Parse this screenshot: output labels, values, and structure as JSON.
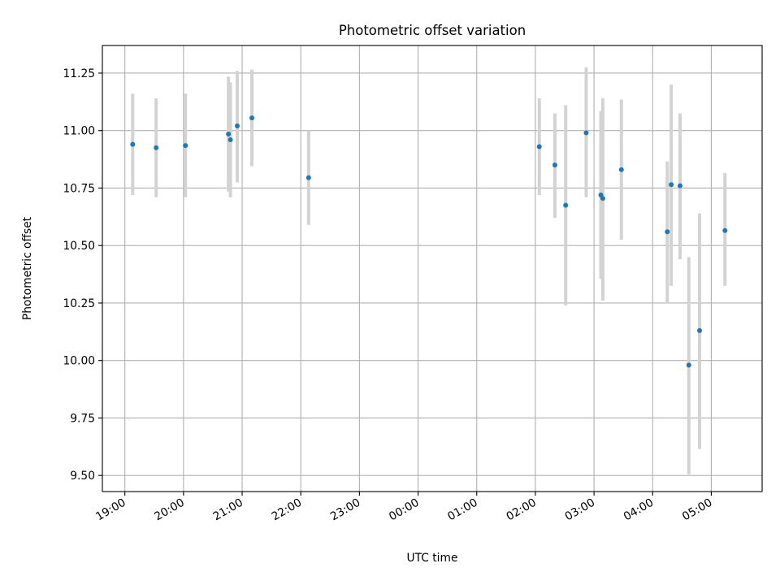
{
  "colors": {
    "point": "#1f77b4",
    "errorbar": "#d3d3d3",
    "grid": "#b0b0b0",
    "axes": "#000000"
  },
  "chart_data": {
    "type": "scatter",
    "title": "Photometric offset variation",
    "xlabel": "UTC time",
    "ylabel": "Photometric offset",
    "x_axis_type": "time",
    "xlim": [
      "18:37",
      "05:52"
    ],
    "ylim": [
      9.43,
      11.37
    ],
    "grid": true,
    "legend": "none",
    "x_ticks": [
      "19:00",
      "20:00",
      "21:00",
      "22:00",
      "23:00",
      "00:00",
      "01:00",
      "02:00",
      "03:00",
      "04:00",
      "05:00"
    ],
    "y_ticks": [
      9.5,
      9.75,
      10.0,
      10.25,
      10.5,
      10.75,
      11.0,
      11.25
    ],
    "y_tick_labels": [
      "9.50",
      "9.75",
      "10.00",
      "10.25",
      "10.50",
      "10.75",
      "11.00",
      "11.25"
    ],
    "error_bar_color": "light gray",
    "marker_color": "blue",
    "points": [
      {
        "time": "19:08",
        "y": 10.94,
        "y_low": 10.72,
        "y_high": 11.16
      },
      {
        "time": "19:32",
        "y": 10.925,
        "y_low": 10.71,
        "y_high": 11.14
      },
      {
        "time": "20:02",
        "y": 10.935,
        "y_low": 10.71,
        "y_high": 11.16
      },
      {
        "time": "20:46",
        "y": 10.985,
        "y_low": 10.735,
        "y_high": 11.235
      },
      {
        "time": "20:48",
        "y": 10.96,
        "y_low": 10.71,
        "y_high": 11.21
      },
      {
        "time": "20:55",
        "y": 11.02,
        "y_low": 10.775,
        "y_high": 11.26
      },
      {
        "time": "21:10",
        "y": 11.055,
        "y_low": 10.845,
        "y_high": 11.265
      },
      {
        "time": "22:08",
        "y": 10.795,
        "y_low": 10.59,
        "y_high": 11.0
      },
      {
        "time": "02:04",
        "y": 10.93,
        "y_low": 10.72,
        "y_high": 11.14
      },
      {
        "time": "02:20",
        "y": 10.85,
        "y_low": 10.62,
        "y_high": 11.075
      },
      {
        "time": "02:31",
        "y": 10.675,
        "y_low": 10.24,
        "y_high": 11.11
      },
      {
        "time": "02:52",
        "y": 10.99,
        "y_low": 10.71,
        "y_high": 11.275
      },
      {
        "time": "03:07",
        "y": 10.72,
        "y_low": 10.355,
        "y_high": 11.085
      },
      {
        "time": "03:09",
        "y": 10.705,
        "y_low": 10.26,
        "y_high": 11.14
      },
      {
        "time": "03:28",
        "y": 10.83,
        "y_low": 10.525,
        "y_high": 11.135
      },
      {
        "time": "04:15",
        "y": 10.56,
        "y_low": 10.25,
        "y_high": 10.865
      },
      {
        "time": "04:19",
        "y": 10.765,
        "y_low": 10.325,
        "y_high": 11.2
      },
      {
        "time": "04:28",
        "y": 10.76,
        "y_low": 10.44,
        "y_high": 11.075
      },
      {
        "time": "04:37",
        "y": 9.98,
        "y_low": 9.505,
        "y_high": 10.45
      },
      {
        "time": "04:48",
        "y": 10.13,
        "y_low": 9.615,
        "y_high": 10.64
      },
      {
        "time": "05:14",
        "y": 10.565,
        "y_low": 10.325,
        "y_high": 10.815
      }
    ]
  }
}
